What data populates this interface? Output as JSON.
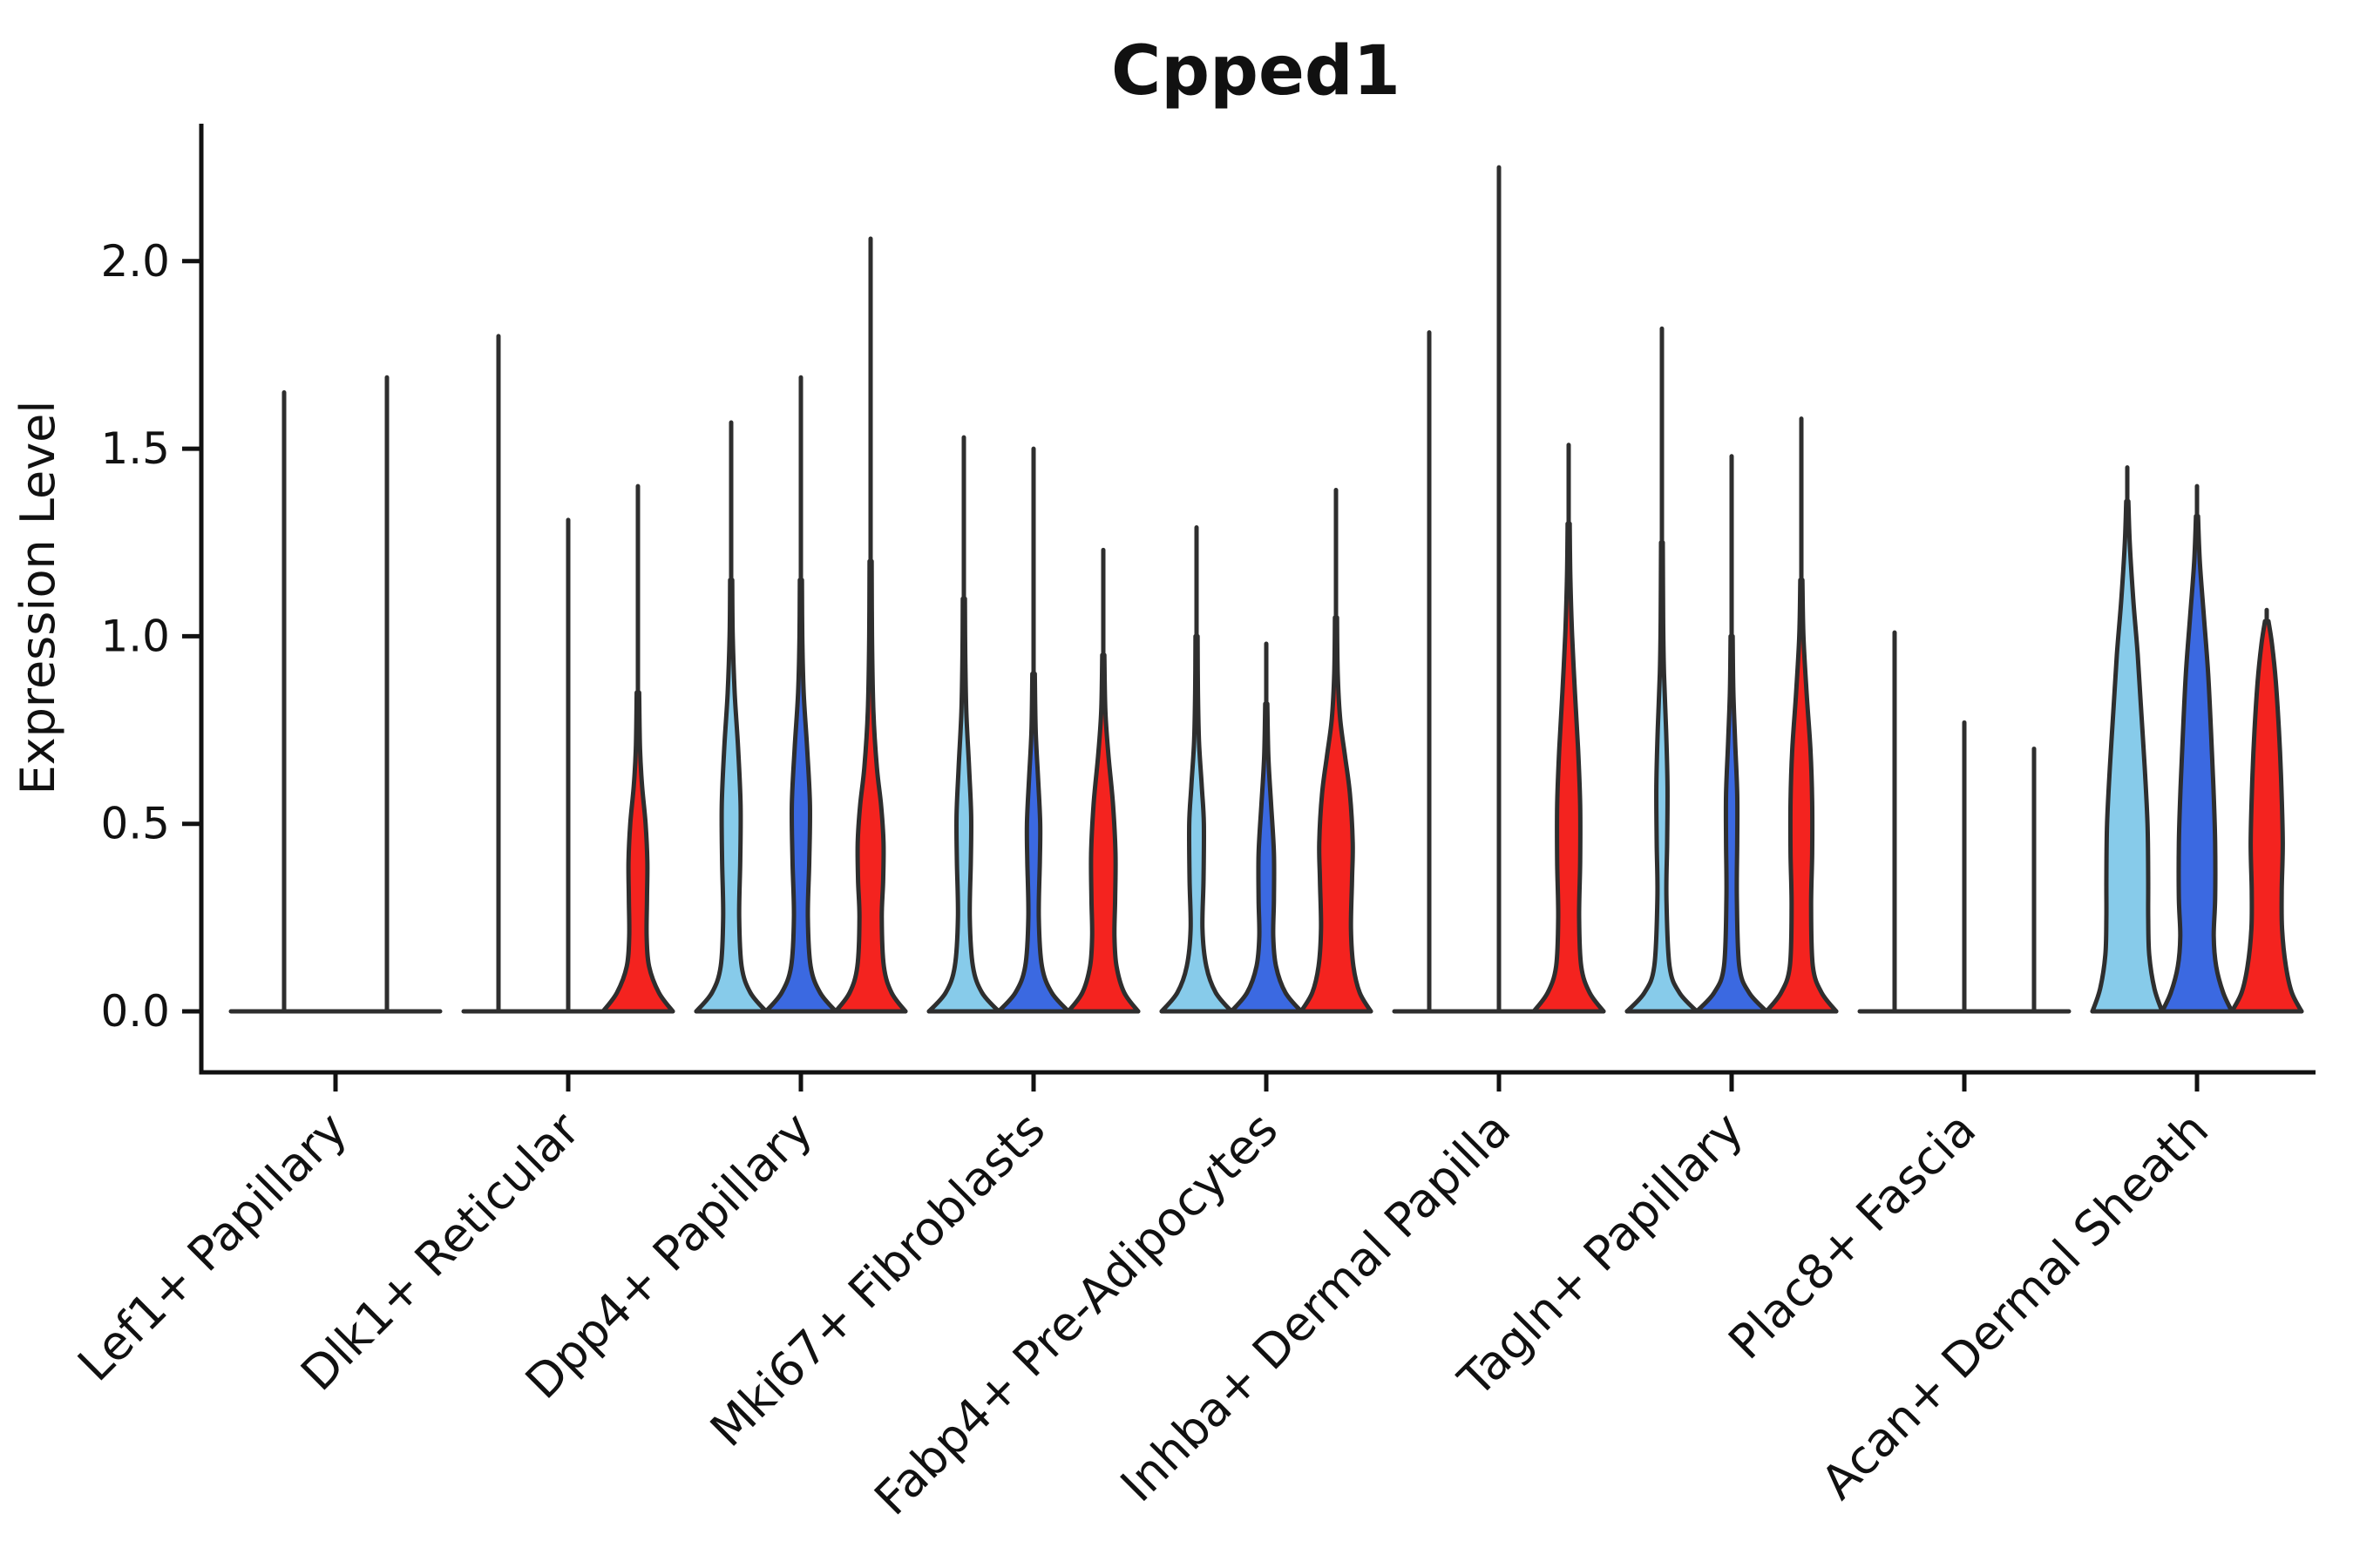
{
  "figure": {
    "title": "Cpped1",
    "ylabel": "Expression Level"
  },
  "chart_data": {
    "type": "violin",
    "title": "Cpped1",
    "ylabel": "Expression Level",
    "xlabel": "",
    "grid": false,
    "legend": "none",
    "ylim": [
      -0.16,
      2.37
    ],
    "yticks": [
      0.0,
      0.5,
      1.0,
      1.5,
      2.0
    ],
    "ytick_labels": [
      "0.0",
      "0.5",
      "1.0",
      "1.5",
      "2.0"
    ],
    "categories": [
      "Lef1+ Papillary",
      "Dlk1+ Reticular",
      "Dpp4+ Papillary",
      "Mki67+ Fibroblasts",
      "Fabp4+ Pre-Adipocytes",
      "Inhba+ Dermal Papilla",
      "Tagln+ Papillary",
      "Plac8+ Fascia",
      "Acan+ Dermal Sheath"
    ],
    "series_colors": {
      "light_blue": "#87CBEA",
      "dark_blue": "#3B69E1",
      "red": "#F4231F"
    },
    "outline_color": "#2E2E2E",
    "axis_color": "#111111",
    "profiles": {
      "p_dlk_red": [
        [
          0,
          1
        ],
        [
          0.05,
          0.6
        ],
        [
          0.12,
          0.32
        ],
        [
          0.2,
          0.25
        ],
        [
          0.3,
          0.26
        ],
        [
          0.4,
          0.27
        ],
        [
          0.5,
          0.22
        ],
        [
          0.6,
          0.12
        ],
        [
          0.7,
          0.06
        ],
        [
          0.85,
          0.035
        ]
      ],
      "p_dpp_lb": [
        [
          0,
          1
        ],
        [
          0.05,
          0.55
        ],
        [
          0.12,
          0.3
        ],
        [
          0.25,
          0.23
        ],
        [
          0.4,
          0.26
        ],
        [
          0.55,
          0.27
        ],
        [
          0.7,
          0.2
        ],
        [
          0.85,
          0.1
        ],
        [
          1.0,
          0.045
        ],
        [
          1.15,
          0.03
        ]
      ],
      "p_dpp_db": [
        [
          0,
          1
        ],
        [
          0.05,
          0.55
        ],
        [
          0.12,
          0.28
        ],
        [
          0.25,
          0.2
        ],
        [
          0.4,
          0.24
        ],
        [
          0.55,
          0.26
        ],
        [
          0.7,
          0.18
        ],
        [
          0.85,
          0.08
        ],
        [
          1.0,
          0.04
        ],
        [
          1.15,
          0.03
        ]
      ],
      "p_dpp_red": [
        [
          0,
          1
        ],
        [
          0.05,
          0.6
        ],
        [
          0.12,
          0.38
        ],
        [
          0.25,
          0.32
        ],
        [
          0.35,
          0.36
        ],
        [
          0.45,
          0.37
        ],
        [
          0.55,
          0.3
        ],
        [
          0.65,
          0.18
        ],
        [
          0.8,
          0.08
        ],
        [
          1.0,
          0.04
        ],
        [
          1.2,
          0.03
        ]
      ],
      "p_mki_lb": [
        [
          0,
          1
        ],
        [
          0.05,
          0.52
        ],
        [
          0.12,
          0.26
        ],
        [
          0.25,
          0.17
        ],
        [
          0.4,
          0.2
        ],
        [
          0.52,
          0.21
        ],
        [
          0.65,
          0.15
        ],
        [
          0.8,
          0.07
        ],
        [
          0.95,
          0.04
        ],
        [
          1.1,
          0.03
        ]
      ],
      "p_mki_db": [
        [
          0,
          1
        ],
        [
          0.05,
          0.52
        ],
        [
          0.12,
          0.24
        ],
        [
          0.25,
          0.15
        ],
        [
          0.4,
          0.18
        ],
        [
          0.5,
          0.19
        ],
        [
          0.62,
          0.13
        ],
        [
          0.75,
          0.06
        ],
        [
          0.9,
          0.035
        ]
      ],
      "p_mki_red": [
        [
          0,
          1
        ],
        [
          0.05,
          0.6
        ],
        [
          0.12,
          0.38
        ],
        [
          0.2,
          0.32
        ],
        [
          0.3,
          0.34
        ],
        [
          0.42,
          0.35
        ],
        [
          0.55,
          0.28
        ],
        [
          0.68,
          0.15
        ],
        [
          0.8,
          0.06
        ],
        [
          0.95,
          0.03
        ]
      ],
      "p_fab_lb": [
        [
          0,
          1
        ],
        [
          0.05,
          0.55
        ],
        [
          0.12,
          0.28
        ],
        [
          0.22,
          0.17
        ],
        [
          0.35,
          0.2
        ],
        [
          0.5,
          0.21
        ],
        [
          0.6,
          0.15
        ],
        [
          0.72,
          0.07
        ],
        [
          0.85,
          0.04
        ],
        [
          1.0,
          0.03
        ]
      ],
      "p_fab_db": [
        [
          0,
          1
        ],
        [
          0.05,
          0.55
        ],
        [
          0.12,
          0.28
        ],
        [
          0.2,
          0.2
        ],
        [
          0.3,
          0.22
        ],
        [
          0.42,
          0.22
        ],
        [
          0.55,
          0.14
        ],
        [
          0.68,
          0.06
        ],
        [
          0.82,
          0.03
        ]
      ],
      "p_fab_red": [
        [
          0,
          1
        ],
        [
          0.05,
          0.68
        ],
        [
          0.12,
          0.5
        ],
        [
          0.22,
          0.43
        ],
        [
          0.35,
          0.46
        ],
        [
          0.45,
          0.48
        ],
        [
          0.58,
          0.4
        ],
        [
          0.68,
          0.26
        ],
        [
          0.78,
          0.12
        ],
        [
          0.9,
          0.05
        ],
        [
          1.05,
          0.03
        ]
      ],
      "p_inh_red": [
        [
          0,
          1
        ],
        [
          0.05,
          0.6
        ],
        [
          0.12,
          0.36
        ],
        [
          0.25,
          0.3
        ],
        [
          0.4,
          0.33
        ],
        [
          0.55,
          0.33
        ],
        [
          0.7,
          0.27
        ],
        [
          0.85,
          0.18
        ],
        [
          1.0,
          0.1
        ],
        [
          1.15,
          0.05
        ],
        [
          1.3,
          0.03
        ]
      ],
      "p_tag_lb": [
        [
          0,
          1
        ],
        [
          0.05,
          0.5
        ],
        [
          0.12,
          0.22
        ],
        [
          0.3,
          0.13
        ],
        [
          0.45,
          0.15
        ],
        [
          0.6,
          0.16
        ],
        [
          0.75,
          0.12
        ],
        [
          0.9,
          0.06
        ],
        [
          1.05,
          0.035
        ],
        [
          1.25,
          0.025
        ]
      ],
      "p_tag_db": [
        [
          0,
          1
        ],
        [
          0.05,
          0.5
        ],
        [
          0.12,
          0.22
        ],
        [
          0.3,
          0.15
        ],
        [
          0.45,
          0.16
        ],
        [
          0.58,
          0.16
        ],
        [
          0.72,
          0.1
        ],
        [
          0.85,
          0.05
        ],
        [
          1.0,
          0.03
        ]
      ],
      "p_tag_red": [
        [
          0,
          1
        ],
        [
          0.05,
          0.58
        ],
        [
          0.12,
          0.33
        ],
        [
          0.28,
          0.28
        ],
        [
          0.42,
          0.31
        ],
        [
          0.56,
          0.31
        ],
        [
          0.7,
          0.26
        ],
        [
          0.85,
          0.15
        ],
        [
          1.0,
          0.06
        ],
        [
          1.15,
          0.03
        ]
      ],
      "p_acan_lb": [
        [
          0,
          1
        ],
        [
          0.06,
          0.78
        ],
        [
          0.15,
          0.63
        ],
        [
          0.25,
          0.6
        ],
        [
          0.35,
          0.6
        ],
        [
          0.5,
          0.58
        ],
        [
          0.65,
          0.5
        ],
        [
          0.8,
          0.4
        ],
        [
          0.95,
          0.3
        ],
        [
          1.1,
          0.17
        ],
        [
          1.25,
          0.07
        ],
        [
          1.36,
          0.03
        ]
      ],
      "p_acan_db": [
        [
          0,
          1
        ],
        [
          0.05,
          0.75
        ],
        [
          0.12,
          0.55
        ],
        [
          0.2,
          0.48
        ],
        [
          0.3,
          0.52
        ],
        [
          0.45,
          0.52
        ],
        [
          0.6,
          0.47
        ],
        [
          0.75,
          0.4
        ],
        [
          0.9,
          0.32
        ],
        [
          1.05,
          0.2
        ],
        [
          1.2,
          0.08
        ],
        [
          1.32,
          0.03
        ]
      ],
      "p_acan_red": [
        [
          0,
          1
        ],
        [
          0.05,
          0.72
        ],
        [
          0.12,
          0.55
        ],
        [
          0.22,
          0.44
        ],
        [
          0.32,
          0.43
        ],
        [
          0.45,
          0.46
        ],
        [
          0.6,
          0.42
        ],
        [
          0.75,
          0.35
        ],
        [
          0.88,
          0.26
        ],
        [
          0.98,
          0.15
        ],
        [
          1.04,
          0.05
        ]
      ]
    },
    "violins": [
      [
        {
          "c": "light_blue",
          "max": 1.65,
          "sx": 21,
          "profile": "flat"
        },
        {
          "c": "dark_blue",
          "max": 1.69,
          "sx": 59,
          "profile": "flat"
        },
        {
          "c": "red",
          "max": 0,
          "profile": "flat"
        }
      ],
      [
        {
          "c": "light_blue",
          "max": 1.8,
          "profile": "flat"
        },
        {
          "c": "dark_blue",
          "max": 1.31,
          "profile": "flat"
        },
        {
          "c": "red",
          "max": 1.4,
          "profile": "p_dlk_red"
        }
      ],
      [
        {
          "c": "light_blue",
          "max": 1.57,
          "profile": "p_dpp_lb"
        },
        {
          "c": "dark_blue",
          "max": 1.69,
          "profile": "p_dpp_db"
        },
        {
          "c": "red",
          "max": 2.06,
          "profile": "p_dpp_red"
        }
      ],
      [
        {
          "c": "light_blue",
          "max": 1.53,
          "profile": "p_mki_lb"
        },
        {
          "c": "dark_blue",
          "max": 1.5,
          "profile": "p_mki_db"
        },
        {
          "c": "red",
          "max": 1.23,
          "profile": "p_mki_red"
        }
      ],
      [
        {
          "c": "light_blue",
          "max": 1.29,
          "profile": "p_fab_lb"
        },
        {
          "c": "dark_blue",
          "max": 0.98,
          "profile": "p_fab_db"
        },
        {
          "c": "red",
          "max": 1.39,
          "profile": "p_fab_red"
        }
      ],
      [
        {
          "c": "light_blue",
          "max": 1.81,
          "profile": "flat"
        },
        {
          "c": "dark_blue",
          "max": 2.25,
          "profile": "flat"
        },
        {
          "c": "red",
          "max": 1.51,
          "profile": "p_inh_red"
        }
      ],
      [
        {
          "c": "light_blue",
          "max": 1.82,
          "profile": "p_tag_lb"
        },
        {
          "c": "dark_blue",
          "max": 1.48,
          "profile": "p_tag_db"
        },
        {
          "c": "red",
          "max": 1.58,
          "profile": "p_tag_red"
        }
      ],
      [
        {
          "c": "light_blue",
          "max": 1.01,
          "profile": "flat"
        },
        {
          "c": "dark_blue",
          "max": 0.77,
          "profile": "flat"
        },
        {
          "c": "red",
          "max": 0.7,
          "profile": "flat"
        }
      ],
      [
        {
          "c": "light_blue",
          "max": 1.45,
          "profile": "p_acan_lb"
        },
        {
          "c": "dark_blue",
          "max": 1.4,
          "profile": "p_acan_db"
        },
        {
          "c": "red",
          "max": 1.07,
          "profile": "p_acan_red"
        }
      ]
    ]
  }
}
